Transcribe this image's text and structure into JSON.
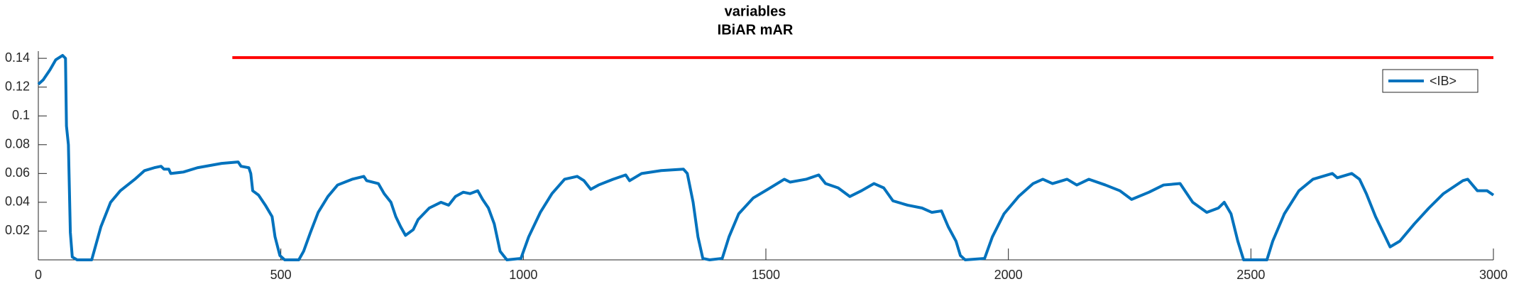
{
  "chart_data": {
    "type": "line",
    "title": "variables",
    "subtitle": "IBiAR mAR",
    "xlim": [
      0,
      3000
    ],
    "xticks": [
      0,
      500,
      1000,
      1500,
      2000,
      2500,
      3000
    ],
    "ylim": [
      0,
      0.145
    ],
    "yticks": [
      0.02,
      0.04,
      0.06,
      0.08,
      0.1,
      0.12,
      0.14
    ],
    "legend": "upper right",
    "series": [
      {
        "name": "<IB>",
        "color": "#0072bd",
        "x": [
          0,
          10,
          24,
          36,
          50,
          56,
          58,
          62,
          66,
          70,
          80,
          110,
          115,
          129,
          149,
          169,
          199,
          219,
          239,
          253,
          259,
          269,
          273,
          299,
          328,
          378,
          412,
          418,
          434,
          438,
          442,
          454,
          468,
          482,
          488,
          498,
          508,
          537,
          547,
          561,
          577,
          597,
          617,
          647,
          671,
          677,
          701,
          713,
          727,
          737,
          747,
          757,
          773,
          783,
          806,
          830,
          846,
          860,
          876,
          890,
          906,
          916,
          928,
          940,
          952,
          966,
          995,
          1011,
          1035,
          1059,
          1085,
          1111,
          1125,
          1139,
          1155,
          1185,
          1211,
          1219,
          1244,
          1284,
          1330,
          1338,
          1350,
          1360,
          1370,
          1384,
          1410,
          1424,
          1444,
          1474,
          1504,
          1538,
          1550,
          1583,
          1609,
          1623,
          1649,
          1673,
          1697,
          1723,
          1743,
          1762,
          1792,
          1822,
          1842,
          1862,
          1876,
          1892,
          1901,
          1911,
          1951,
          1967,
          1991,
          2021,
          2051,
          2071,
          2091,
          2121,
          2141,
          2166,
          2200,
          2230,
          2254,
          2290,
          2320,
          2354,
          2380,
          2409,
          2433,
          2445,
          2459,
          2473,
          2485,
          2533,
          2545,
          2569,
          2599,
          2628,
          2668,
          2678,
          2708,
          2724,
          2738,
          2757,
          2787,
          2807,
          2837,
          2867,
          2897,
          2937,
          2947,
          2967,
          2987,
          3000
        ],
        "values": [
          0.122,
          0.125,
          0.132,
          0.139,
          0.142,
          0.14,
          0.093,
          0.08,
          0.019,
          0.002,
          0,
          0,
          0.006,
          0.023,
          0.04,
          0.048,
          0.056,
          0.062,
          0.064,
          0.065,
          0.063,
          0.063,
          0.06,
          0.061,
          0.064,
          0.067,
          0.068,
          0.065,
          0.064,
          0.06,
          0.048,
          0.045,
          0.038,
          0.03,
          0.016,
          0.003,
          0,
          0,
          0.006,
          0.019,
          0.033,
          0.044,
          0.052,
          0.056,
          0.058,
          0.055,
          0.053,
          0.046,
          0.04,
          0.03,
          0.023,
          0.017,
          0.021,
          0.028,
          0.036,
          0.04,
          0.038,
          0.044,
          0.047,
          0.046,
          0.048,
          0.042,
          0.036,
          0.025,
          0.006,
          0,
          0.001,
          0.016,
          0.033,
          0.046,
          0.056,
          0.058,
          0.055,
          0.049,
          0.052,
          0.056,
          0.059,
          0.055,
          0.06,
          0.062,
          0.063,
          0.06,
          0.04,
          0.016,
          0.001,
          0,
          0.001,
          0.016,
          0.032,
          0.043,
          0.049,
          0.056,
          0.054,
          0.056,
          0.059,
          0.053,
          0.05,
          0.044,
          0.048,
          0.053,
          0.05,
          0.041,
          0.038,
          0.036,
          0.033,
          0.034,
          0.023,
          0.013,
          0.003,
          0,
          0.001,
          0.016,
          0.032,
          0.044,
          0.053,
          0.056,
          0.053,
          0.056,
          0.052,
          0.056,
          0.052,
          0.048,
          0.042,
          0.047,
          0.052,
          0.053,
          0.04,
          0.033,
          0.036,
          0.04,
          0.032,
          0.013,
          0,
          0,
          0.013,
          0.032,
          0.048,
          0.056,
          0.06,
          0.057,
          0.06,
          0.056,
          0.046,
          0.03,
          0.009,
          0.013,
          0.025,
          0.036,
          0.046,
          0.055,
          0.056,
          0.048,
          0.048,
          0.045
        ]
      },
      {
        "color": "#ff0000",
        "x": [
          400,
          3000
        ],
        "values": [
          0.1405,
          0.1405
        ]
      }
    ]
  }
}
